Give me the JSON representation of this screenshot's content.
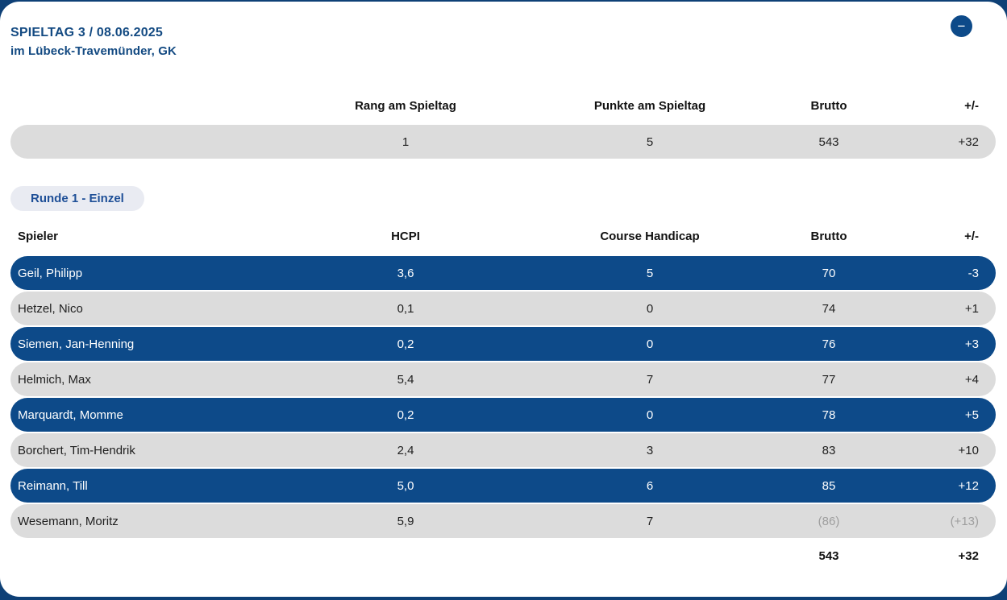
{
  "colors": {
    "accent_blue": "#0d4a89",
    "page_background": "#0e4076",
    "row_gray": "#dcdcdc",
    "chip_background": "#e9ebf2",
    "muted_text": "#9e9e9e",
    "title_blue": "#134a82"
  },
  "header": {
    "title": "SPIELTAG 3 / 08.06.2025",
    "subtitle": "im Lübeck-Travemünder, GK",
    "collapse_icon": "−"
  },
  "summary_table": {
    "columns": {
      "rang": "Rang am Spieltag",
      "punkte": "Punkte am Spieltag",
      "brutto": "Brutto",
      "plusminus": "+/-"
    },
    "row": {
      "rang": "1",
      "punkte": "5",
      "brutto": "543",
      "plusminus": "+32"
    }
  },
  "round_section": {
    "chip_label": "Runde 1 - Einzel",
    "columns": {
      "spieler": "Spieler",
      "hcpi": "HCPI",
      "course_handicap": "Course Handicap",
      "brutto": "Brutto",
      "plusminus": "+/-"
    },
    "players": [
      {
        "name": "Geil, Philipp",
        "hcpi": "3,6",
        "course_handicap": "5",
        "brutto": "70",
        "plusminus": "-3",
        "highlighted": true,
        "muted_values": false
      },
      {
        "name": "Hetzel, Nico",
        "hcpi": "0,1",
        "course_handicap": "0",
        "brutto": "74",
        "plusminus": "+1",
        "highlighted": false,
        "muted_values": false
      },
      {
        "name": "Siemen, Jan-Henning",
        "hcpi": "0,2",
        "course_handicap": "0",
        "brutto": "76",
        "plusminus": "+3",
        "highlighted": true,
        "muted_values": false
      },
      {
        "name": "Helmich, Max",
        "hcpi": "5,4",
        "course_handicap": "7",
        "brutto": "77",
        "plusminus": "+4",
        "highlighted": false,
        "muted_values": false
      },
      {
        "name": "Marquardt, Momme",
        "hcpi": "0,2",
        "course_handicap": "0",
        "brutto": "78",
        "plusminus": "+5",
        "highlighted": true,
        "muted_values": false
      },
      {
        "name": "Borchert, Tim-Hendrik",
        "hcpi": "2,4",
        "course_handicap": "3",
        "brutto": "83",
        "plusminus": "+10",
        "highlighted": false,
        "muted_values": false
      },
      {
        "name": "Reimann, Till",
        "hcpi": "5,0",
        "course_handicap": "6",
        "brutto": "85",
        "plusminus": "+12",
        "highlighted": true,
        "muted_values": false
      },
      {
        "name": "Wesemann, Moritz",
        "hcpi": "5,9",
        "course_handicap": "7",
        "brutto": "(86)",
        "plusminus": "(+13)",
        "highlighted": false,
        "muted_values": true
      }
    ],
    "totals": {
      "brutto": "543",
      "plusminus": "+32"
    }
  }
}
